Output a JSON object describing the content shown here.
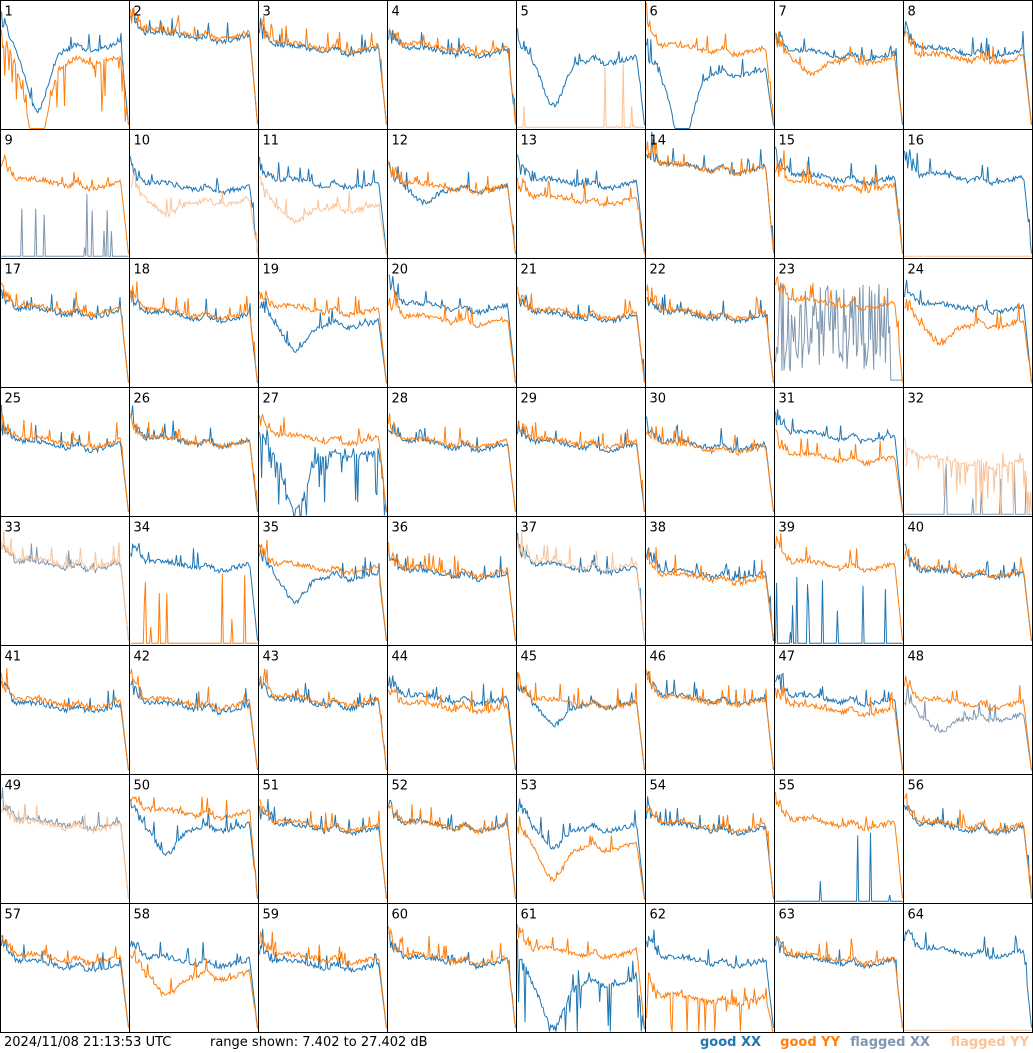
{
  "colors": {
    "good_xx": "#1f77b4",
    "good_yy": "#ff7f0e",
    "flagged_xx": "#7f97b0",
    "flagged_yy": "#f9c49a",
    "border": "#000000"
  },
  "footer": {
    "timestamp": "2024/11/08 21:13:53 UTC",
    "range": "range shown: 7.402 to 27.402 dB"
  },
  "legend": {
    "good_xx": "good XX",
    "good_yy": "good YY",
    "flagged_xx": "flagged XX",
    "flagged_yy": "flagged YY"
  },
  "chart_data": {
    "type": "line",
    "layout": "8x8 small multiples",
    "range_db": [
      7.402,
      27.402
    ],
    "series_names": [
      "good XX",
      "good YY",
      "flagged XX",
      "flagged YY"
    ],
    "panels": [
      {
        "id": 1,
        "xx": {
          "p": "dip",
          "lv": 0.65,
          "dl": 0.55,
          "state": "good"
        },
        "yy": {
          "p": "dip",
          "lv": 0.55,
          "dl": 0.75,
          "state": "good",
          "spiky": true
        }
      },
      {
        "id": 2,
        "xx": {
          "p": "std",
          "lv": 0.72,
          "state": "good"
        },
        "yy": {
          "p": "std",
          "lv": 0.74,
          "state": "good"
        }
      },
      {
        "id": 3,
        "xx": {
          "p": "std",
          "lv": 0.62,
          "state": "good"
        },
        "yy": {
          "p": "std",
          "lv": 0.64,
          "state": "good"
        }
      },
      {
        "id": 4,
        "xx": {
          "p": "std",
          "lv": 0.6,
          "state": "good"
        },
        "yy": {
          "p": "std",
          "lv": 0.63,
          "state": "good"
        }
      },
      {
        "id": 5,
        "xx": {
          "p": "dip",
          "lv": 0.55,
          "dl": 0.4,
          "state": "good"
        },
        "yy": {
          "p": "flat0",
          "state": "flagged",
          "spiky": true
        }
      },
      {
        "id": 6,
        "xx": {
          "p": "dip",
          "lv": 0.45,
          "dl": 0.6,
          "state": "good"
        },
        "yy": {
          "p": "std",
          "lv": 0.62,
          "state": "good"
        }
      },
      {
        "id": 7,
        "xx": {
          "p": "std",
          "lv": 0.58,
          "state": "good"
        },
        "yy": {
          "p": "dip",
          "lv": 0.55,
          "dl": 0.15,
          "state": "good"
        }
      },
      {
        "id": 8,
        "xx": {
          "p": "std",
          "lv": 0.6,
          "state": "good"
        },
        "yy": {
          "p": "std",
          "lv": 0.55,
          "state": "good"
        }
      },
      {
        "id": 9,
        "xx": {
          "p": "flat0",
          "state": "flagged",
          "spiky": true
        },
        "yy": {
          "p": "std",
          "lv": 0.58,
          "state": "good"
        }
      },
      {
        "id": 10,
        "xx": {
          "p": "std",
          "lv": 0.55,
          "state": "good"
        },
        "yy": {
          "p": "dip",
          "lv": 0.45,
          "dl": 0.15,
          "state": "flagged"
        }
      },
      {
        "id": 11,
        "xx": {
          "p": "std",
          "lv": 0.58,
          "state": "good"
        },
        "yy": {
          "p": "dip",
          "lv": 0.4,
          "dl": 0.15,
          "state": "flagged"
        }
      },
      {
        "id": 12,
        "xx": {
          "p": "dip",
          "lv": 0.55,
          "dl": 0.15,
          "state": "good"
        },
        "yy": {
          "p": "std",
          "lv": 0.55,
          "state": "good"
        }
      },
      {
        "id": 13,
        "xx": {
          "p": "std",
          "lv": 0.58,
          "state": "good"
        },
        "yy": {
          "p": "std",
          "lv": 0.45,
          "state": "good"
        }
      },
      {
        "id": 14,
        "xx": {
          "p": "std",
          "lv": 0.7,
          "state": "good"
        },
        "yy": {
          "p": "std",
          "lv": 0.7,
          "state": "good"
        }
      },
      {
        "id": 15,
        "xx": {
          "p": "std",
          "lv": 0.62,
          "state": "good"
        },
        "yy": {
          "p": "std",
          "lv": 0.56,
          "state": "good"
        }
      },
      {
        "id": 16,
        "xx": {
          "p": "std",
          "lv": 0.62,
          "state": "good"
        },
        "yy": {
          "p": "flat0",
          "state": "flagged"
        }
      },
      {
        "id": 17,
        "xx": {
          "p": "std",
          "lv": 0.58,
          "state": "good"
        },
        "yy": {
          "p": "std",
          "lv": 0.6,
          "state": "good"
        }
      },
      {
        "id": 18,
        "xx": {
          "p": "std",
          "lv": 0.55,
          "state": "good"
        },
        "yy": {
          "p": "std",
          "lv": 0.57,
          "state": "good"
        }
      },
      {
        "id": 19,
        "xx": {
          "p": "dip",
          "lv": 0.5,
          "dl": 0.25,
          "state": "good"
        },
        "yy": {
          "p": "std",
          "lv": 0.6,
          "state": "good"
        }
      },
      {
        "id": 20,
        "xx": {
          "p": "std",
          "lv": 0.62,
          "state": "good"
        },
        "yy": {
          "p": "std",
          "lv": 0.52,
          "state": "good"
        }
      },
      {
        "id": 21,
        "xx": {
          "p": "std",
          "lv": 0.55,
          "state": "good"
        },
        "yy": {
          "p": "std",
          "lv": 0.57,
          "state": "good"
        }
      },
      {
        "id": 22,
        "xx": {
          "p": "std",
          "lv": 0.55,
          "state": "good"
        },
        "yy": {
          "p": "std",
          "lv": 0.57,
          "state": "good"
        }
      },
      {
        "id": 23,
        "xx": {
          "p": "noisy",
          "lv": 0.4,
          "state": "flagged"
        },
        "yy": {
          "p": "std",
          "lv": 0.65,
          "state": "good"
        }
      },
      {
        "id": 24,
        "xx": {
          "p": "std",
          "lv": 0.62,
          "state": "good"
        },
        "yy": {
          "p": "dip",
          "lv": 0.5,
          "dl": 0.2,
          "state": "good"
        }
      },
      {
        "id": 25,
        "xx": {
          "p": "std",
          "lv": 0.55,
          "state": "good"
        },
        "yy": {
          "p": "std",
          "lv": 0.58,
          "state": "good"
        }
      },
      {
        "id": 26,
        "xx": {
          "p": "std",
          "lv": 0.58,
          "state": "good"
        },
        "yy": {
          "p": "std",
          "lv": 0.58,
          "state": "good"
        }
      },
      {
        "id": 27,
        "xx": {
          "p": "dip",
          "lv": 0.5,
          "dl": 0.5,
          "state": "good",
          "spiky": true
        },
        "yy": {
          "p": "std",
          "lv": 0.6,
          "state": "good"
        }
      },
      {
        "id": 28,
        "xx": {
          "p": "std",
          "lv": 0.55,
          "state": "good"
        },
        "yy": {
          "p": "std",
          "lv": 0.57,
          "state": "good"
        }
      },
      {
        "id": 29,
        "xx": {
          "p": "std",
          "lv": 0.55,
          "state": "good"
        },
        "yy": {
          "p": "std",
          "lv": 0.57,
          "state": "good"
        }
      },
      {
        "id": 30,
        "xx": {
          "p": "std",
          "lv": 0.55,
          "state": "good"
        },
        "yy": {
          "p": "std",
          "lv": 0.53,
          "state": "good"
        }
      },
      {
        "id": 31,
        "xx": {
          "p": "std",
          "lv": 0.62,
          "state": "good"
        },
        "yy": {
          "p": "std",
          "lv": 0.45,
          "state": "good"
        }
      },
      {
        "id": 32,
        "xx": {
          "p": "flat0",
          "state": "flagged",
          "spiky": true
        },
        "yy": {
          "p": "std",
          "lv": 0.42,
          "state": "flagged",
          "spiky": true
        }
      },
      {
        "id": 33,
        "xx": {
          "p": "std",
          "lv": 0.62,
          "state": "flagged"
        },
        "yy": {
          "p": "std",
          "lv": 0.64,
          "state": "flagged"
        }
      },
      {
        "id": 34,
        "xx": {
          "p": "std",
          "lv": 0.62,
          "state": "good"
        },
        "yy": {
          "p": "flat0",
          "state": "good",
          "spiky": true
        }
      },
      {
        "id": 35,
        "xx": {
          "p": "dip",
          "lv": 0.55,
          "dl": 0.25,
          "state": "good"
        },
        "yy": {
          "p": "std",
          "lv": 0.6,
          "state": "good"
        }
      },
      {
        "id": 36,
        "xx": {
          "p": "std",
          "lv": 0.55,
          "state": "good"
        },
        "yy": {
          "p": "std",
          "lv": 0.57,
          "state": "good"
        }
      },
      {
        "id": 37,
        "xx": {
          "p": "std",
          "lv": 0.6,
          "state": "good"
        },
        "yy": {
          "p": "std",
          "lv": 0.62,
          "state": "flagged"
        }
      },
      {
        "id": 38,
        "xx": {
          "p": "std",
          "lv": 0.55,
          "state": "good"
        },
        "yy": {
          "p": "std",
          "lv": 0.52,
          "state": "good"
        }
      },
      {
        "id": 39,
        "xx": {
          "p": "flat0",
          "state": "good",
          "spiky": true
        },
        "yy": {
          "p": "std",
          "lv": 0.62,
          "state": "good"
        }
      },
      {
        "id": 40,
        "xx": {
          "p": "std",
          "lv": 0.55,
          "state": "good"
        },
        "yy": {
          "p": "std",
          "lv": 0.57,
          "state": "good"
        }
      },
      {
        "id": 41,
        "xx": {
          "p": "std",
          "lv": 0.52,
          "state": "good"
        },
        "yy": {
          "p": "std",
          "lv": 0.55,
          "state": "good"
        }
      },
      {
        "id": 42,
        "xx": {
          "p": "std",
          "lv": 0.52,
          "state": "good"
        },
        "yy": {
          "p": "std",
          "lv": 0.55,
          "state": "good"
        }
      },
      {
        "id": 43,
        "xx": {
          "p": "std",
          "lv": 0.55,
          "state": "good"
        },
        "yy": {
          "p": "std",
          "lv": 0.57,
          "state": "good"
        }
      },
      {
        "id": 44,
        "xx": {
          "p": "std",
          "lv": 0.58,
          "state": "good"
        },
        "yy": {
          "p": "std",
          "lv": 0.52,
          "state": "good"
        }
      },
      {
        "id": 45,
        "xx": {
          "p": "dip",
          "lv": 0.55,
          "dl": 0.2,
          "state": "good"
        },
        "yy": {
          "p": "std",
          "lv": 0.55,
          "state": "good"
        }
      },
      {
        "id": 46,
        "xx": {
          "p": "std",
          "lv": 0.58,
          "state": "good"
        },
        "yy": {
          "p": "std",
          "lv": 0.57,
          "state": "good"
        }
      },
      {
        "id": 47,
        "xx": {
          "p": "std",
          "lv": 0.58,
          "state": "good"
        },
        "yy": {
          "p": "std",
          "lv": 0.5,
          "state": "good"
        }
      },
      {
        "id": 48,
        "xx": {
          "p": "dip",
          "lv": 0.45,
          "dl": 0.15,
          "state": "flagged"
        },
        "yy": {
          "p": "std",
          "lv": 0.55,
          "state": "good"
        }
      },
      {
        "id": 49,
        "xx": {
          "p": "std",
          "lv": 0.62,
          "state": "flagged"
        },
        "yy": {
          "p": "std",
          "lv": 0.6,
          "state": "flagged"
        }
      },
      {
        "id": 50,
        "xx": {
          "p": "dip",
          "lv": 0.6,
          "dl": 0.25,
          "state": "good"
        },
        "yy": {
          "p": "std",
          "lv": 0.7,
          "state": "good"
        }
      },
      {
        "id": 51,
        "xx": {
          "p": "std",
          "lv": 0.58,
          "state": "good"
        },
        "yy": {
          "p": "std",
          "lv": 0.6,
          "state": "good"
        }
      },
      {
        "id": 52,
        "xx": {
          "p": "std",
          "lv": 0.6,
          "state": "good"
        },
        "yy": {
          "p": "std",
          "lv": 0.6,
          "state": "good"
        }
      },
      {
        "id": 53,
        "xx": {
          "p": "dip",
          "lv": 0.6,
          "dl": 0.2,
          "state": "good"
        },
        "yy": {
          "p": "dip",
          "lv": 0.45,
          "dl": 0.3,
          "state": "good"
        }
      },
      {
        "id": 54,
        "xx": {
          "p": "std",
          "lv": 0.58,
          "state": "good"
        },
        "yy": {
          "p": "std",
          "lv": 0.6,
          "state": "good"
        }
      },
      {
        "id": 55,
        "xx": {
          "p": "flat0",
          "state": "good",
          "spiky": true
        },
        "yy": {
          "p": "std",
          "lv": 0.62,
          "state": "good"
        }
      },
      {
        "id": 56,
        "xx": {
          "p": "std",
          "lv": 0.58,
          "state": "good"
        },
        "yy": {
          "p": "std",
          "lv": 0.6,
          "state": "good"
        }
      },
      {
        "id": 57,
        "xx": {
          "p": "std",
          "lv": 0.52,
          "state": "good"
        },
        "yy": {
          "p": "std",
          "lv": 0.57,
          "state": "good"
        }
      },
      {
        "id": 58,
        "xx": {
          "p": "std",
          "lv": 0.55,
          "state": "good"
        },
        "yy": {
          "p": "dip",
          "lv": 0.45,
          "dl": 0.2,
          "state": "good"
        }
      },
      {
        "id": 59,
        "xx": {
          "p": "std",
          "lv": 0.52,
          "state": "good"
        },
        "yy": {
          "p": "std",
          "lv": 0.57,
          "state": "good"
        }
      },
      {
        "id": 60,
        "xx": {
          "p": "std",
          "lv": 0.55,
          "state": "good"
        },
        "yy": {
          "p": "std",
          "lv": 0.57,
          "state": "good"
        }
      },
      {
        "id": 61,
        "xx": {
          "p": "dip",
          "lv": 0.4,
          "dl": 0.4,
          "state": "good",
          "spiky": true
        },
        "yy": {
          "p": "std",
          "lv": 0.62,
          "state": "good"
        }
      },
      {
        "id": 62,
        "xx": {
          "p": "std",
          "lv": 0.55,
          "state": "good"
        },
        "yy": {
          "p": "std",
          "lv": 0.25,
          "state": "good",
          "spiky": true
        }
      },
      {
        "id": 63,
        "xx": {
          "p": "std",
          "lv": 0.55,
          "state": "good"
        },
        "yy": {
          "p": "std",
          "lv": 0.57,
          "state": "good"
        }
      },
      {
        "id": 64,
        "xx": {
          "p": "std",
          "lv": 0.62,
          "state": "good"
        },
        "yy": {
          "p": "flat0",
          "state": "flagged"
        }
      }
    ]
  }
}
